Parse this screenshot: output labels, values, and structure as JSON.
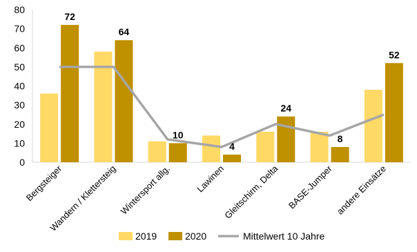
{
  "chart_data": {
    "type": "bar",
    "title": "",
    "xlabel": "",
    "ylabel": "",
    "ylim": [
      0,
      80
    ],
    "yticks": [
      0,
      10,
      20,
      30,
      40,
      50,
      60,
      70,
      80
    ],
    "grid": false,
    "legend_position": "bottom",
    "categories": [
      "Bergsteiger",
      "Wandern / Klettersteig",
      "Wintersport allg.",
      "Lawinen",
      "Gleitschirm, Delta",
      "BASE-Jumper",
      "andere Einsätze"
    ],
    "series": [
      {
        "name": "2019",
        "kind": "bar",
        "color": "#FFD966",
        "values": [
          36,
          58,
          11,
          14,
          16,
          16,
          38
        ]
      },
      {
        "name": "2020",
        "kind": "bar",
        "color": "#BF9000",
        "values": [
          72,
          64,
          10,
          4,
          24,
          8,
          52
        ],
        "show_labels": true
      },
      {
        "name": "Mittelwert 10 Jahre",
        "kind": "line",
        "color": "#A6A6A6",
        "values": [
          50,
          50,
          12,
          8,
          20,
          14,
          25
        ]
      }
    ],
    "data_labels": [
      "72",
      "64",
      "10",
      "4",
      "24",
      "8",
      "52"
    ],
    "legend": [
      "2019",
      "2020",
      "Mittelwert 10 Jahre"
    ]
  }
}
